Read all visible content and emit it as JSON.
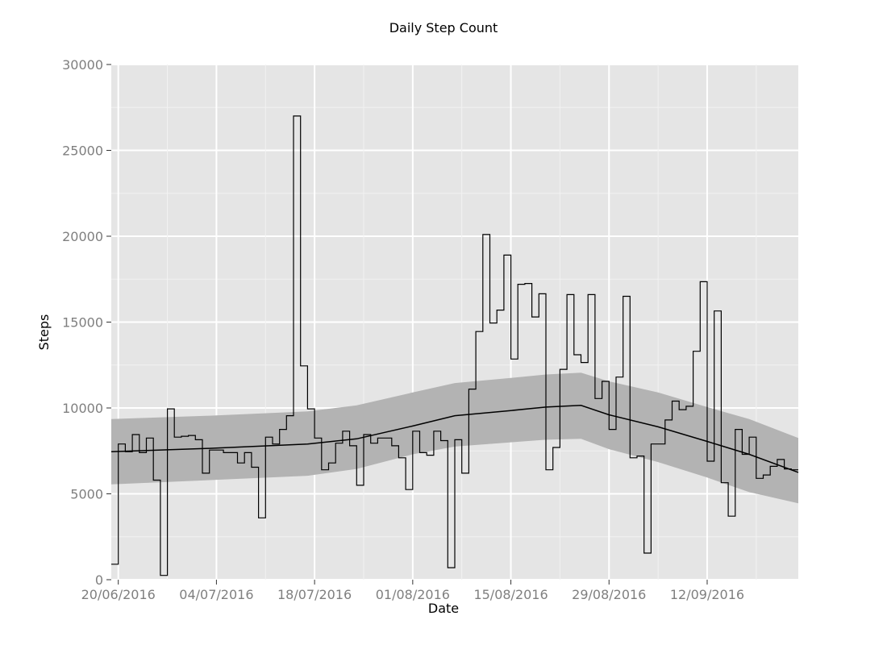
{
  "chart_data": {
    "type": "line",
    "title": "Daily Step Count",
    "xlabel": "Date",
    "ylabel": "Steps",
    "ylim": [
      0,
      30000
    ],
    "xlim": [
      "2016-06-19",
      "2016-09-25"
    ],
    "y_ticks": [
      {
        "value": 0,
        "label": "0"
      },
      {
        "value": 5000,
        "label": "5000"
      },
      {
        "value": 10000,
        "label": "10000"
      },
      {
        "value": 15000,
        "label": "15000"
      },
      {
        "value": 20000,
        "label": "20000"
      },
      {
        "value": 25000,
        "label": "25000"
      },
      {
        "value": 30000,
        "label": "30000"
      }
    ],
    "x_ticks": [
      {
        "date": "2016-06-20",
        "label": "20/06/2016"
      },
      {
        "date": "2016-07-04",
        "label": "04/07/2016"
      },
      {
        "date": "2016-07-18",
        "label": "18/07/2016"
      },
      {
        "date": "2016-08-01",
        "label": "01/08/2016"
      },
      {
        "date": "2016-08-15",
        "label": "15/08/2016"
      },
      {
        "date": "2016-08-29",
        "label": "29/08/2016"
      },
      {
        "date": "2016-09-12",
        "label": "12/09/2016"
      }
    ],
    "grid": true,
    "background": "#e5e5e5",
    "colors": {
      "line": "#000000",
      "band": "#b3b3b3",
      "grid": "#ffffff",
      "tick_label": "#7f7f7f"
    },
    "series": [
      {
        "type": "step",
        "x": [
          "2016-06-19",
          "2016-06-20",
          "2016-06-21",
          "2016-06-22",
          "2016-06-23",
          "2016-06-24",
          "2016-06-25",
          "2016-06-26",
          "2016-06-27",
          "2016-06-28",
          "2016-06-29",
          "2016-06-30",
          "2016-07-01",
          "2016-07-02",
          "2016-07-03",
          "2016-07-04",
          "2016-07-05",
          "2016-07-06",
          "2016-07-07",
          "2016-07-08",
          "2016-07-09",
          "2016-07-10",
          "2016-07-11",
          "2016-07-12",
          "2016-07-13",
          "2016-07-14",
          "2016-07-15",
          "2016-07-16",
          "2016-07-17",
          "2016-07-18",
          "2016-07-19",
          "2016-07-20",
          "2016-07-21",
          "2016-07-22",
          "2016-07-23",
          "2016-07-24",
          "2016-07-25",
          "2016-07-26",
          "2016-07-27",
          "2016-07-28",
          "2016-07-29",
          "2016-07-30",
          "2016-07-31",
          "2016-08-01",
          "2016-08-02",
          "2016-08-03",
          "2016-08-04",
          "2016-08-05",
          "2016-08-06",
          "2016-08-07",
          "2016-08-08",
          "2016-08-09",
          "2016-08-10",
          "2016-08-11",
          "2016-08-12",
          "2016-08-13",
          "2016-08-14",
          "2016-08-15",
          "2016-08-16",
          "2016-08-17",
          "2016-08-18",
          "2016-08-19",
          "2016-08-20",
          "2016-08-21",
          "2016-08-22",
          "2016-08-23",
          "2016-08-24",
          "2016-08-25",
          "2016-08-26",
          "2016-08-27",
          "2016-08-28",
          "2016-08-29",
          "2016-08-30",
          "2016-08-31",
          "2016-09-01",
          "2016-09-02",
          "2016-09-03",
          "2016-09-04",
          "2016-09-05",
          "2016-09-06",
          "2016-09-07",
          "2016-09-08",
          "2016-09-09",
          "2016-09-10",
          "2016-09-11",
          "2016-09-12",
          "2016-09-13",
          "2016-09-14",
          "2016-09-15",
          "2016-09-16",
          "2016-09-17",
          "2016-09-18",
          "2016-09-19",
          "2016-09-20",
          "2016-09-21",
          "2016-09-22",
          "2016-09-23",
          "2016-09-24"
        ],
        "values": [
          900,
          7900,
          7450,
          8450,
          7400,
          8250,
          5800,
          250,
          9950,
          8300,
          8350,
          8400,
          8150,
          6200,
          7550,
          7550,
          7400,
          7400,
          6800,
          7400,
          6550,
          3600,
          8300,
          7900,
          8750,
          9550,
          27000,
          12450,
          9950,
          8250,
          6400,
          6800,
          7950,
          8650,
          7800,
          5500,
          8450,
          7950,
          8250,
          8250,
          7800,
          7100,
          5250,
          8650,
          7400,
          7250,
          8650,
          8100,
          700,
          8150,
          6200,
          11100,
          14450,
          20100,
          14950,
          15700,
          18900,
          12850,
          17200,
          17250,
          15300,
          16650,
          6400,
          7700,
          12250,
          16600,
          13100,
          12650,
          16600,
          10550,
          11550,
          8750,
          11800,
          16500,
          7100,
          7200,
          1550,
          7900,
          7900,
          9300,
          10400,
          9900,
          10100,
          13300,
          17350,
          6900,
          15650,
          5650,
          3700,
          8750,
          7300,
          8300,
          5900,
          6100,
          6600,
          7000,
          6450,
          6400
        ]
      },
      {
        "type": "smooth",
        "x": [
          "2016-06-19",
          "2016-07-03",
          "2016-07-17",
          "2016-07-24",
          "2016-08-01",
          "2016-08-07",
          "2016-08-15",
          "2016-08-20",
          "2016-08-25",
          "2016-08-29",
          "2016-09-05",
          "2016-09-12",
          "2016-09-18",
          "2016-09-25"
        ],
        "values": [
          7450,
          7650,
          7900,
          8200,
          8950,
          9550,
          9850,
          10050,
          10150,
          9600,
          8900,
          8050,
          7300,
          6250
        ],
        "lower": [
          5550,
          5800,
          6050,
          6450,
          7300,
          7750,
          8000,
          8150,
          8200,
          7600,
          6850,
          5950,
          5100,
          4450
        ],
        "upper": [
          9350,
          9550,
          9800,
          10150,
          10900,
          11450,
          11750,
          11950,
          12050,
          11550,
          10900,
          10050,
          9350,
          8250
        ]
      }
    ]
  }
}
